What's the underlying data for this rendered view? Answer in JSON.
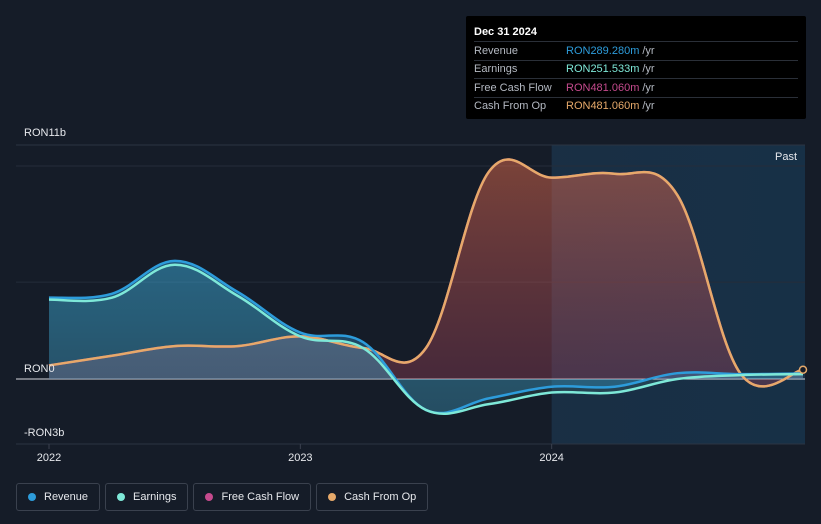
{
  "chart_data": {
    "type": "area",
    "x": [
      2022.0,
      2022.25,
      2022.5,
      2022.75,
      2023.0,
      2023.25,
      2023.5,
      2023.75,
      2024.0,
      2024.25,
      2024.5,
      2024.75,
      2025.0
    ],
    "series": [
      {
        "name": "Revenue",
        "color": "#2d9cdb",
        "values": [
          4.2,
          4.4,
          6.1,
          4.5,
          2.4,
          1.9,
          -1.6,
          -1.0,
          -0.4,
          -0.4,
          0.3,
          0.25,
          0.29
        ]
      },
      {
        "name": "Earnings",
        "color": "#7ee8d8",
        "values": [
          4.1,
          4.2,
          5.9,
          4.3,
          2.2,
          1.6,
          -1.6,
          -1.3,
          -0.7,
          -0.7,
          0.0,
          0.2,
          0.25
        ]
      },
      {
        "name": "Free Cash Flow",
        "color": "#c54a8d",
        "values": [
          0.7,
          1.2,
          1.7,
          1.7,
          2.2,
          1.6,
          1.6,
          10.7,
          10.4,
          10.6,
          9.5,
          0.3,
          0.48
        ]
      },
      {
        "name": "Cash From Op",
        "color": "#e6a96a",
        "values": [
          0.7,
          1.2,
          1.7,
          1.7,
          2.2,
          1.6,
          1.6,
          10.7,
          10.4,
          10.6,
          9.5,
          0.3,
          0.48
        ]
      }
    ],
    "xticks": [
      {
        "value": 2022,
        "label": "2022"
      },
      {
        "value": 2023,
        "label": "2023"
      },
      {
        "value": 2024,
        "label": "2024"
      }
    ],
    "ylim": [
      -3,
      11
    ],
    "ytick_labels": [
      {
        "value": 11,
        "label": "RON11b"
      },
      {
        "value": 0,
        "label": "RON0"
      },
      {
        "value": -3,
        "label": "-RON3b"
      }
    ],
    "past_label": "Past",
    "past_start": 2024.0
  },
  "tooltip": {
    "date": "Dec 31 2024",
    "rows": [
      {
        "label": "Revenue",
        "value": "RON289.280m",
        "unit": "/yr",
        "color": "#2d9cdb"
      },
      {
        "label": "Earnings",
        "value": "RON251.533m",
        "unit": "/yr",
        "color": "#7ee8d8"
      },
      {
        "label": "Free Cash Flow",
        "value": "RON481.060m",
        "unit": "/yr",
        "color": "#c54a8d"
      },
      {
        "label": "Cash From Op",
        "value": "RON481.060m",
        "unit": "/yr",
        "color": "#e6a96a"
      }
    ]
  },
  "legend": [
    {
      "label": "Revenue",
      "color": "#2d9cdb"
    },
    {
      "label": "Earnings",
      "color": "#7ee8d8"
    },
    {
      "label": "Free Cash Flow",
      "color": "#c54a8d"
    },
    {
      "label": "Cash From Op",
      "color": "#e6a96a"
    }
  ]
}
